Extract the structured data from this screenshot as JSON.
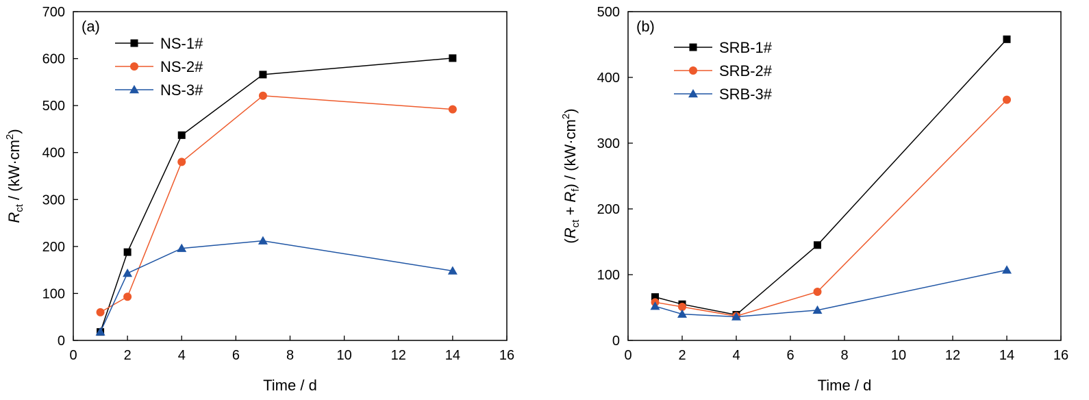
{
  "chart_data": [
    {
      "type": "line",
      "panel_label": "(a)",
      "xlabel": "Time / d",
      "ylabel": {
        "symbol": "R",
        "sub": "ct",
        "unit_pre": " / (kW·cm",
        "sup": "2",
        "unit_post": ")"
      },
      "xlim": [
        0,
        16
      ],
      "ylim": [
        0,
        700
      ],
      "xticks": [
        "0",
        "2",
        "4",
        "6",
        "8",
        "10",
        "12",
        "14",
        "16"
      ],
      "yticks": [
        "0",
        "100",
        "200",
        "300",
        "400",
        "500",
        "600",
        "700"
      ],
      "grid": false,
      "legend_position": "top-left",
      "x": [
        1,
        2,
        4,
        7,
        14
      ],
      "series": [
        {
          "name": "NS-1#",
          "marker": "square",
          "color": "#000000",
          "values": [
            18,
            188,
            437,
            566,
            601
          ]
        },
        {
          "name": "NS-2#",
          "marker": "circle",
          "color": "#ee5a2b",
          "values": [
            60,
            93,
            380,
            521,
            492
          ]
        },
        {
          "name": "NS-3#",
          "marker": "triangle",
          "color": "#1f55a4",
          "values": [
            18,
            143,
            196,
            212,
            148
          ]
        }
      ]
    },
    {
      "type": "line",
      "panel_label": "(b)",
      "xlabel": "Time / d",
      "ylabel": {
        "symbol": "(R",
        "sub": "ct",
        "mid_pre": " + R",
        "sub2": "f",
        "unit_pre": ") / (kW·cm",
        "sup": "2",
        "unit_post": ")"
      },
      "xlim": [
        0,
        16
      ],
      "ylim": [
        0,
        500
      ],
      "xticks": [
        "0",
        "2",
        "4",
        "6",
        "8",
        "10",
        "12",
        "14",
        "16"
      ],
      "yticks": [
        "0",
        "100",
        "200",
        "300",
        "400",
        "500"
      ],
      "grid": false,
      "legend_position": "top-left",
      "x": [
        1,
        2,
        4,
        7,
        14
      ],
      "series": [
        {
          "name": "SRB-1#",
          "marker": "square",
          "color": "#000000",
          "values": [
            66,
            55,
            39,
            145,
            458
          ]
        },
        {
          "name": "SRB-2#",
          "marker": "circle",
          "color": "#ee5a2b",
          "values": [
            58,
            51,
            37,
            74,
            366
          ]
        },
        {
          "name": "SRB-3#",
          "marker": "triangle",
          "color": "#1f55a4",
          "values": [
            52,
            40,
            36,
            46,
            107
          ]
        }
      ]
    }
  ]
}
